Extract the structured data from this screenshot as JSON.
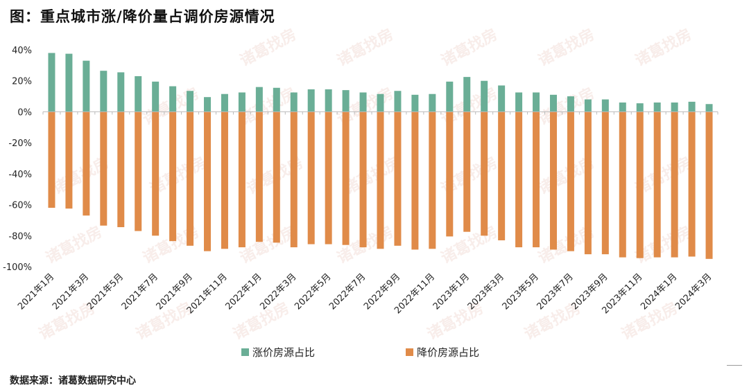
{
  "title": "图：重点城市涨/降价量占调价房源情况",
  "source": "数据来源：诸葛数据研究中心",
  "watermark": "诸葛找房",
  "colors": {
    "up": "#6aae96",
    "down": "#e08b49",
    "axis": "#bbbbbb"
  },
  "chart_data": {
    "type": "bar",
    "title": "重点城市涨/降价量占调价房源情况",
    "ylim": [
      -100,
      40
    ],
    "yticks": [
      40,
      20,
      0,
      -20,
      -40,
      -60,
      -80,
      -100
    ],
    "ytick_labels": [
      "40%",
      "20%",
      "0%",
      "-20%",
      "-40%",
      "-60%",
      "-80%",
      "-100%"
    ],
    "categories": [
      "2021年1月",
      "2021年2月",
      "2021年3月",
      "2021年4月",
      "2021年5月",
      "2021年6月",
      "2021年7月",
      "2021年8月",
      "2021年9月",
      "2021年10月",
      "2021年11月",
      "2021年12月",
      "2022年1月",
      "2022年2月",
      "2022年3月",
      "2022年4月",
      "2022年5月",
      "2022年6月",
      "2022年7月",
      "2022年8月",
      "2022年9月",
      "2022年10月",
      "2022年11月",
      "2022年12月",
      "2023年1月",
      "2023年2月",
      "2023年3月",
      "2023年4月",
      "2023年5月",
      "2023年6月",
      "2023年7月",
      "2023年8月",
      "2023年9月",
      "2023年10月",
      "2023年11月",
      "2023年12月",
      "2024年1月",
      "2024年2月",
      "2024年3月"
    ],
    "xtick_labels": [
      "2021年1月",
      "2021年3月",
      "2021年5月",
      "2021年7月",
      "2021年9月",
      "2021年11月",
      "2022年1月",
      "2022年3月",
      "2022年5月",
      "2022年7月",
      "2022年9月",
      "2022年11月",
      "2023年1月",
      "2023年3月",
      "2023年5月",
      "2023年7月",
      "2023年9月",
      "2023年11月",
      "2024年1月",
      "2024年3月"
    ],
    "series": [
      {
        "name": "涨价房源占比",
        "values": [
          38,
          37.5,
          33,
          26.5,
          25.5,
          23,
          19.5,
          16.5,
          13.5,
          9.5,
          11.5,
          12.5,
          16,
          15.5,
          12.5,
          14.5,
          14.5,
          14,
          12.5,
          11.5,
          13.5,
          11,
          11.5,
          19.5,
          22.5,
          20,
          17,
          12.5,
          12.5,
          11,
          10,
          8,
          8,
          6,
          5.5,
          6,
          6,
          6.5,
          5
        ]
      },
      {
        "name": "降价房源占比",
        "values": [
          -62,
          -62.5,
          -67,
          -73.5,
          -74.5,
          -77,
          -80,
          -83.5,
          -86.5,
          -90,
          -88.5,
          -87.5,
          -84,
          -84.5,
          -87.5,
          -85.5,
          -85.5,
          -86,
          -87.5,
          -88.5,
          -86.5,
          -89,
          -88.5,
          -80.5,
          -77.5,
          -80,
          -83,
          -87.5,
          -87.5,
          -89,
          -90,
          -92,
          -92,
          -94,
          -94.5,
          -94,
          -94,
          -93.5,
          -95
        ]
      }
    ],
    "legend_position": "bottom"
  }
}
